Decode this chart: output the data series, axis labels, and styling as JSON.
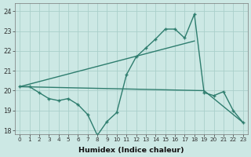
{
  "xlabel": "Humidex (Indice chaleur)",
  "bg_color": "#cce8e4",
  "line_color": "#2e7d6e",
  "grid_color": "#aacfca",
  "xlim": [
    -0.5,
    23.5
  ],
  "ylim": [
    17.8,
    24.4
  ],
  "yticks": [
    18,
    19,
    20,
    21,
    22,
    23,
    24
  ],
  "xticks": [
    0,
    1,
    2,
    3,
    4,
    5,
    6,
    7,
    8,
    9,
    10,
    11,
    12,
    13,
    14,
    15,
    16,
    17,
    18,
    19,
    20,
    21,
    22,
    23
  ],
  "line1_x": [
    0,
    1,
    2,
    3,
    4,
    5,
    6,
    7,
    8,
    9,
    10,
    11,
    12,
    13,
    14,
    15,
    16,
    17,
    18,
    19,
    20,
    21,
    22,
    23
  ],
  "line1_y": [
    20.2,
    20.2,
    19.9,
    19.6,
    19.5,
    19.6,
    19.3,
    18.8,
    17.75,
    18.45,
    18.9,
    20.8,
    21.7,
    22.15,
    22.6,
    23.1,
    23.1,
    22.65,
    23.85,
    19.9,
    19.75,
    19.95,
    19.0,
    18.4
  ],
  "line2_x": [
    0,
    18
  ],
  "line2_y": [
    20.2,
    22.5
  ],
  "line3_x": [
    0,
    19,
    23
  ],
  "line3_y": [
    20.2,
    20.0,
    18.4
  ]
}
